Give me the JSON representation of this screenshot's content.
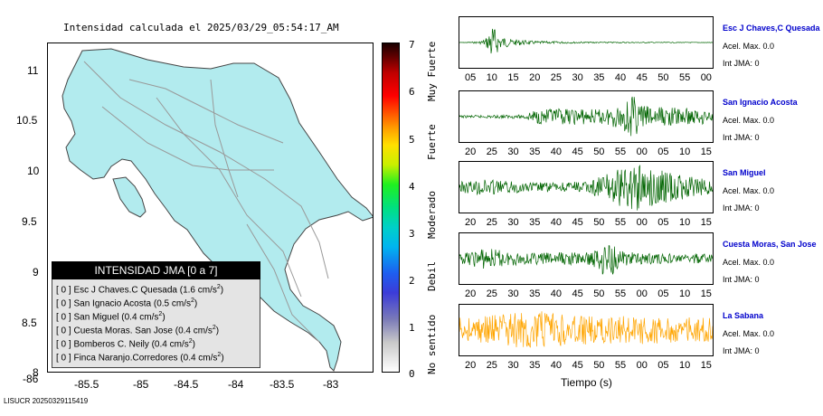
{
  "map": {
    "title": "Intensidad calculada el 2025/03/29_05:54:17_AM",
    "x_ticks": [
      "-86",
      "-85.5",
      "-85",
      "-84.5",
      "-84",
      "-83.5",
      "-83"
    ],
    "y_ticks": [
      "11",
      "10.5",
      "10",
      "9.5",
      "9",
      "8.5",
      "8"
    ],
    "fill_color": "#b2ebee",
    "legend": {
      "heading": "INTENSIDAD JMA [0 a 7]",
      "items": [
        {
          "bracket": "[ 0 ]",
          "text": "Esc J Chaves.C Quesada (1.6 cm/s",
          "sup": "2",
          "close": ")"
        },
        {
          "bracket": "[ 0 ]",
          "text": "San Ignacio Acosta (0.5 cm/s",
          "sup": "2",
          "close": ")"
        },
        {
          "bracket": "[ 0 ]",
          "text": "San Miguel (0.4 cm/s",
          "sup": "2",
          "close": ")"
        },
        {
          "bracket": "[ 0 ]",
          "text": "Cuesta Moras. San Jose (0.4 cm/s",
          "sup": "2",
          "close": ")"
        },
        {
          "bracket": "[ 0 ]",
          "text": "Bomberos C. Neily (0.4 cm/s",
          "sup": "2",
          "close": ")"
        },
        {
          "bracket": "[ 0 ]",
          "text": "Finca Naranjo.Corredores (0.4 cm/s",
          "sup": "2",
          "close": ")"
        }
      ]
    }
  },
  "colorbar": {
    "numbers": [
      "7",
      "6",
      "5",
      "4",
      "3",
      "2",
      "1",
      "0"
    ],
    "words": [
      "Muy Fuerte",
      "Fuerte",
      "Moderado",
      "Debil",
      "No sentido"
    ]
  },
  "chart_data": {
    "type": "line",
    "xlabel": "Tiempo (s)",
    "series": [
      {
        "name": "Esc J Chaves,C Quesada",
        "accel": "Acel. Max. 0.0",
        "int": "Int JMA: 0",
        "color": "#006400",
        "x_ticks": [
          "05",
          "10",
          "15",
          "20",
          "25",
          "30",
          "35",
          "40",
          "45",
          "50",
          "55",
          "00"
        ],
        "envelope": [
          [
            0.03,
            0.02
          ],
          [
            0.08,
            0.05
          ],
          [
            0.1,
            0.15
          ],
          [
            0.115,
            0.35
          ],
          [
            0.125,
            0.9
          ],
          [
            0.14,
            0.6
          ],
          [
            0.16,
            0.3
          ],
          [
            0.2,
            0.15
          ],
          [
            0.3,
            0.06
          ],
          [
            0.5,
            0.03
          ],
          [
            1.0,
            0.01
          ]
        ]
      },
      {
        "name": "San Ignacio Acosta",
        "accel": "Acel. Max. 0.0",
        "int": "Int JMA: 0",
        "color": "#006400",
        "x_ticks": [
          "20",
          "25",
          "30",
          "35",
          "40",
          "45",
          "50",
          "55",
          "00",
          "05",
          "10",
          "15"
        ],
        "envelope": [
          [
            0,
            0.05
          ],
          [
            0.25,
            0.08
          ],
          [
            0.3,
            0.3
          ],
          [
            0.45,
            0.35
          ],
          [
            0.55,
            0.3
          ],
          [
            0.63,
            0.5
          ],
          [
            0.68,
            1.0
          ],
          [
            0.72,
            0.5
          ],
          [
            0.85,
            0.4
          ],
          [
            0.95,
            0.35
          ],
          [
            1.0,
            0.2
          ]
        ]
      },
      {
        "name": "San Miguel",
        "accel": "Acel. Max. 0.0",
        "int": "Int JMA: 0",
        "color": "#006400",
        "x_ticks": [
          "20",
          "25",
          "30",
          "35",
          "40",
          "45",
          "50",
          "55",
          "00",
          "05",
          "10",
          "15"
        ],
        "envelope": [
          [
            0,
            0.25
          ],
          [
            0.1,
            0.35
          ],
          [
            0.2,
            0.25
          ],
          [
            0.35,
            0.2
          ],
          [
            0.5,
            0.25
          ],
          [
            0.58,
            0.6
          ],
          [
            0.66,
            0.9
          ],
          [
            0.7,
            1.0
          ],
          [
            0.75,
            0.85
          ],
          [
            0.85,
            0.6
          ],
          [
            0.95,
            0.4
          ],
          [
            1.0,
            0.3
          ]
        ]
      },
      {
        "name": "Cuesta Moras, San Jose",
        "accel": "Acel. Max. 0.0",
        "int": "Int JMA: 0",
        "color": "#006400",
        "x_ticks": [
          "20",
          "25",
          "30",
          "35",
          "40",
          "45",
          "50",
          "55",
          "00",
          "05",
          "10",
          "15"
        ],
        "envelope": [
          [
            0,
            0.2
          ],
          [
            0.1,
            0.45
          ],
          [
            0.2,
            0.3
          ],
          [
            0.3,
            0.25
          ],
          [
            0.4,
            0.3
          ],
          [
            0.5,
            0.25
          ],
          [
            0.6,
            0.9
          ],
          [
            0.63,
            0.35
          ],
          [
            0.7,
            0.25
          ],
          [
            0.85,
            0.2
          ],
          [
            1.0,
            0.2
          ]
        ]
      },
      {
        "name": "La Sabana",
        "accel": "Acel. Max. 0.0",
        "int": "Int JMA: 0",
        "color": "#ffa500",
        "x_ticks": [
          "20",
          "25",
          "30",
          "35",
          "40",
          "45",
          "50",
          "55",
          "00",
          "05",
          "10",
          "15"
        ],
        "envelope": [
          [
            0,
            0.55
          ],
          [
            0.1,
            0.65
          ],
          [
            0.2,
            0.7
          ],
          [
            0.3,
            0.9
          ],
          [
            0.35,
            0.75
          ],
          [
            0.45,
            0.65
          ],
          [
            0.55,
            0.6
          ],
          [
            0.7,
            0.6
          ],
          [
            0.85,
            0.55
          ],
          [
            1.0,
            0.55
          ]
        ]
      }
    ]
  },
  "footer": "LISUCR 20250329115419"
}
